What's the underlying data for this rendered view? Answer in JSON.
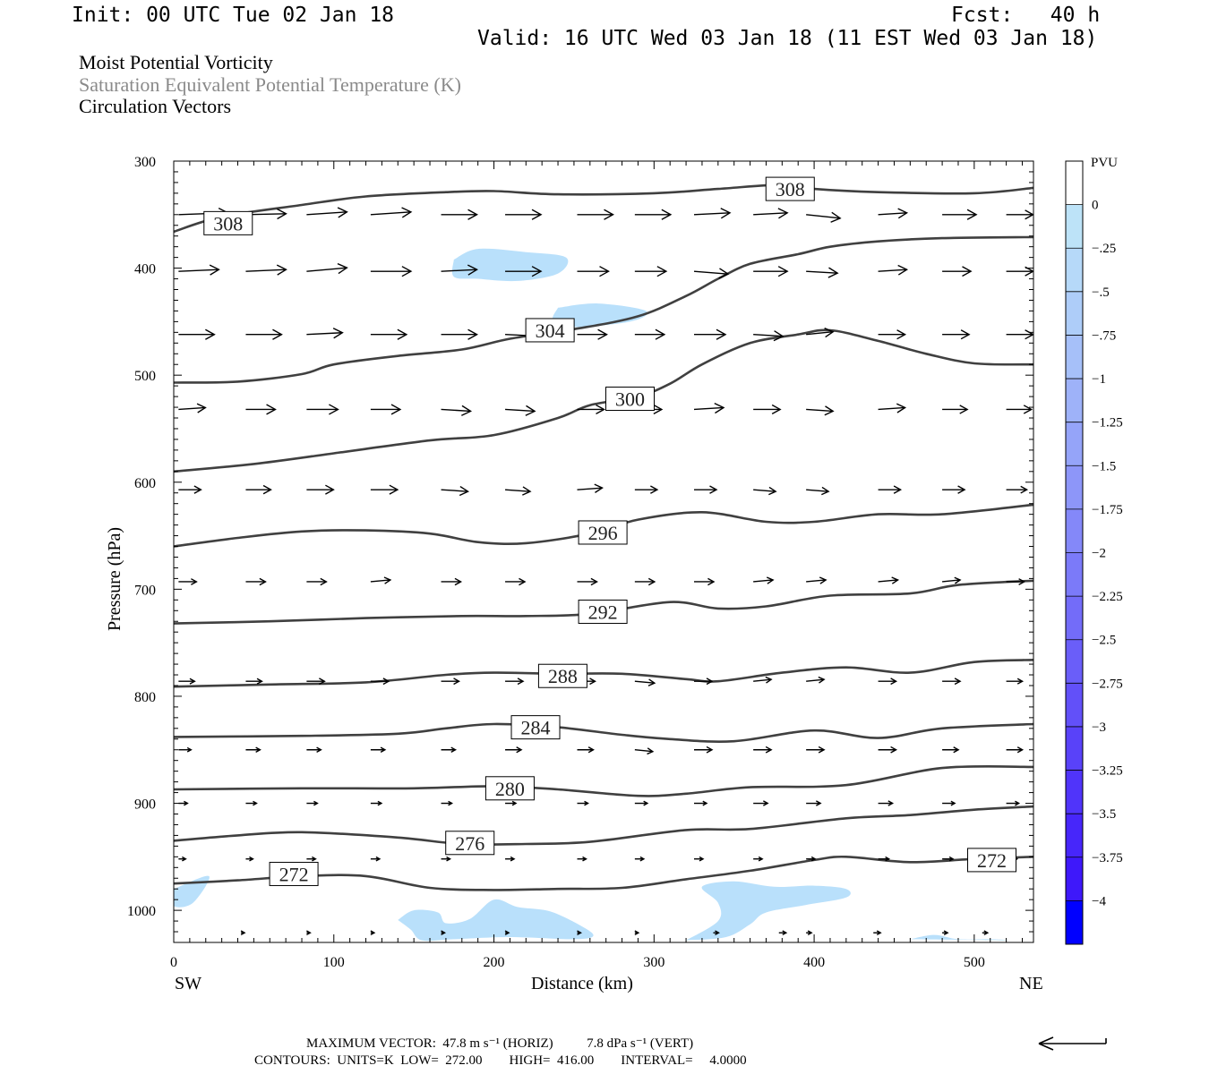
{
  "header": {
    "init": "Init: 00 UTC Tue 02 Jan 18",
    "fcst": "Fcst:   40 h",
    "valid": "Valid: 16 UTC Wed 03 Jan 18 (11 EST Wed 03 Jan 18)"
  },
  "fields": {
    "field1": "Moist Potential Vorticity",
    "field2": "Saturation Equivalent Potential Temperature (K)",
    "field3": "Circulation Vectors"
  },
  "footer": {
    "max_vector": "MAXIMUM VECTOR:  47.8 m s⁻¹ (HORIZ)          7.8 dPa s⁻¹ (VERT)",
    "contours": "CONTOURS:  UNITS=K  LOW=  272.00        HIGH=  416.00        INTERVAL=     4.0000"
  },
  "colorbar": {
    "unit": "PVU",
    "labels": [
      "0",
      "-.25",
      "-.5",
      "-.75",
      "-1",
      "-1.25",
      "-1.5",
      "-1.75",
      "-2",
      "-2.25",
      "-2.5",
      "-2.75",
      "-3",
      "-3.25",
      "-3.5",
      "-3.75",
      "-4"
    ],
    "colors": [
      "#ffffff",
      "#bde3f8",
      "#b6d9f9",
      "#aecdf9",
      "#a6c0f9",
      "#9eb2f9",
      "#95a4f9",
      "#8d96f9",
      "#8488f9",
      "#7b7af9",
      "#736cf9",
      "#6a5ef9",
      "#6250f9",
      "#5942f9",
      "#5034fa",
      "#4726fa",
      "#3e18fa",
      "#0000ff"
    ]
  },
  "chart_data": {
    "type": "cross-section",
    "xlabel": "Distance (km)",
    "ylabel": "Pressure (hPa)",
    "xlim": [
      0,
      537
    ],
    "ylim": [
      1030,
      300
    ],
    "xticks": [
      0,
      100,
      200,
      300,
      400,
      500
    ],
    "yticks": [
      300,
      400,
      500,
      600,
      700,
      800,
      900,
      1000
    ],
    "x_end_labels": {
      "left": "SW",
      "right": "NE"
    },
    "contour_line_color": "#404040",
    "shading_color": "#b9e0fb",
    "contours": [
      {
        "value": 308,
        "points": [
          [
            0,
            366
          ],
          [
            30,
            352
          ],
          [
            80,
            341
          ],
          [
            120,
            333
          ],
          [
            170,
            329
          ],
          [
            200,
            328
          ],
          [
            240,
            331
          ],
          [
            300,
            330
          ],
          [
            340,
            326
          ],
          [
            380,
            322
          ],
          [
            400,
            326
          ],
          [
            440,
            329
          ],
          [
            500,
            330
          ],
          [
            537,
            325
          ]
        ],
        "labels": [
          [
            34,
            358
          ],
          [
            385,
            326
          ]
        ]
      },
      {
        "value": 304,
        "points": [
          [
            0,
            507
          ],
          [
            40,
            506
          ],
          [
            80,
            499
          ],
          [
            100,
            490
          ],
          [
            140,
            482
          ],
          [
            180,
            476
          ],
          [
            210,
            466
          ],
          [
            250,
            457
          ],
          [
            290,
            445
          ],
          [
            320,
            426
          ],
          [
            340,
            410
          ],
          [
            360,
            396
          ],
          [
            390,
            387
          ],
          [
            410,
            380
          ],
          [
            440,
            375
          ],
          [
            480,
            372
          ],
          [
            537,
            371
          ]
        ],
        "labels": [
          [
            235,
            458
          ]
        ]
      },
      {
        "value": 300,
        "points": [
          [
            0,
            590
          ],
          [
            50,
            583
          ],
          [
            100,
            573
          ],
          [
            160,
            561
          ],
          [
            200,
            556
          ],
          [
            240,
            540
          ],
          [
            260,
            528
          ],
          [
            290,
            520
          ],
          [
            310,
            508
          ],
          [
            330,
            490
          ],
          [
            360,
            470
          ],
          [
            390,
            462
          ],
          [
            410,
            458
          ],
          [
            440,
            468
          ],
          [
            470,
            480
          ],
          [
            500,
            489
          ],
          [
            537,
            490
          ]
        ],
        "labels": [
          [
            285,
            522
          ]
        ]
      },
      {
        "value": 296,
        "points": [
          [
            0,
            660
          ],
          [
            40,
            652
          ],
          [
            80,
            646
          ],
          [
            120,
            645
          ],
          [
            160,
            648
          ],
          [
            190,
            656
          ],
          [
            220,
            657
          ],
          [
            260,
            648
          ],
          [
            290,
            635
          ],
          [
            330,
            628
          ],
          [
            370,
            637
          ],
          [
            400,
            637
          ],
          [
            440,
            630
          ],
          [
            480,
            630
          ],
          [
            537,
            621
          ]
        ],
        "labels": [
          [
            268,
            647
          ]
        ]
      },
      {
        "value": 292,
        "points": [
          [
            0,
            732
          ],
          [
            60,
            730
          ],
          [
            120,
            727
          ],
          [
            180,
            725
          ],
          [
            220,
            725
          ],
          [
            260,
            723
          ],
          [
            310,
            712
          ],
          [
            340,
            718
          ],
          [
            370,
            716
          ],
          [
            410,
            706
          ],
          [
            460,
            704
          ],
          [
            490,
            696
          ],
          [
            537,
            692
          ]
        ],
        "labels": [
          [
            268,
            721
          ]
        ]
      },
      {
        "value": 288,
        "points": [
          [
            0,
            791
          ],
          [
            60,
            789
          ],
          [
            120,
            787
          ],
          [
            170,
            780
          ],
          [
            200,
            778
          ],
          [
            240,
            779
          ],
          [
            280,
            779
          ],
          [
            320,
            784
          ],
          [
            340,
            786
          ],
          [
            380,
            778
          ],
          [
            420,
            773
          ],
          [
            460,
            778
          ],
          [
            500,
            768
          ],
          [
            537,
            766
          ]
        ],
        "labels": [
          [
            243,
            781
          ]
        ]
      },
      {
        "value": 284,
        "points": [
          [
            0,
            838
          ],
          [
            80,
            837
          ],
          [
            140,
            835
          ],
          [
            170,
            830
          ],
          [
            200,
            826
          ],
          [
            240,
            829
          ],
          [
            280,
            836
          ],
          [
            310,
            840
          ],
          [
            350,
            842
          ],
          [
            400,
            832
          ],
          [
            440,
            839
          ],
          [
            480,
            830
          ],
          [
            537,
            826
          ]
        ],
        "labels": [
          [
            226,
            829
          ]
        ]
      },
      {
        "value": 280,
        "points": [
          [
            0,
            887
          ],
          [
            80,
            886
          ],
          [
            150,
            886
          ],
          [
            200,
            884
          ],
          [
            240,
            887
          ],
          [
            290,
            893
          ],
          [
            320,
            891
          ],
          [
            360,
            885
          ],
          [
            420,
            883
          ],
          [
            480,
            867
          ],
          [
            537,
            866
          ]
        ],
        "labels": [
          [
            210,
            886
          ]
        ]
      },
      {
        "value": 276,
        "points": [
          [
            0,
            935
          ],
          [
            40,
            930
          ],
          [
            80,
            927
          ],
          [
            140,
            932
          ],
          [
            180,
            938
          ],
          [
            220,
            938
          ],
          [
            260,
            936
          ],
          [
            320,
            925
          ],
          [
            360,
            924
          ],
          [
            420,
            914
          ],
          [
            460,
            911
          ],
          [
            500,
            906
          ],
          [
            537,
            903
          ]
        ],
        "labels": [
          [
            185,
            937
          ]
        ]
      },
      {
        "value": 272,
        "points": [
          [
            0,
            975
          ],
          [
            40,
            972
          ],
          [
            80,
            968
          ],
          [
            120,
            968
          ],
          [
            160,
            979
          ],
          [
            200,
            981
          ],
          [
            240,
            980
          ],
          [
            280,
            979
          ],
          [
            320,
            971
          ],
          [
            360,
            963
          ],
          [
            400,
            953
          ],
          [
            420,
            950
          ],
          [
            460,
            955
          ],
          [
            500,
            952
          ],
          [
            537,
            950
          ]
        ],
        "labels": [
          [
            75,
            966
          ],
          [
            511,
            953
          ]
        ]
      }
    ],
    "mpv_regions": [
      {
        "level": "-.25",
        "outline": [
          [
            0,
            980
          ],
          [
            22,
            968
          ],
          [
            12,
            993
          ],
          [
            0,
            996
          ]
        ]
      },
      {
        "level": "-.25",
        "outline": [
          [
            175,
            392
          ],
          [
            190,
            382
          ],
          [
            220,
            385
          ],
          [
            245,
            390
          ],
          [
            240,
            405
          ],
          [
            215,
            412
          ],
          [
            190,
            410
          ],
          [
            175,
            408
          ]
        ]
      },
      {
        "level": "-.25",
        "outline": [
          [
            240,
            437
          ],
          [
            265,
            433
          ],
          [
            295,
            440
          ],
          [
            285,
            450
          ],
          [
            250,
            455
          ],
          [
            237,
            449
          ]
        ]
      },
      {
        "level": "-.25",
        "outline": [
          [
            140,
            1009
          ],
          [
            150,
            1000
          ],
          [
            165,
            1002
          ],
          [
            170,
            1012
          ],
          [
            185,
            1008
          ],
          [
            200,
            990
          ],
          [
            215,
            997
          ],
          [
            235,
            1001
          ],
          [
            255,
            1015
          ],
          [
            262,
            1024
          ],
          [
            250,
            1027
          ],
          [
            210,
            1025
          ],
          [
            175,
            1027
          ],
          [
            155,
            1028
          ],
          [
            148,
            1018
          ]
        ]
      },
      {
        "level": "-.25",
        "outline": [
          [
            320,
            1028
          ],
          [
            340,
            1010
          ],
          [
            340,
            993
          ],
          [
            330,
            978
          ],
          [
            350,
            973
          ],
          [
            375,
            978
          ],
          [
            400,
            977
          ],
          [
            420,
            980
          ],
          [
            420,
            988
          ],
          [
            395,
            995
          ],
          [
            370,
            1002
          ],
          [
            360,
            1013
          ],
          [
            345,
            1025
          ]
        ]
      },
      {
        "level": "-.25",
        "outline": [
          [
            460,
            1027
          ],
          [
            475,
            1023
          ],
          [
            490,
            1027
          ],
          [
            510,
            1027
          ],
          [
            518,
            1028
          ]
        ]
      }
    ]
  }
}
